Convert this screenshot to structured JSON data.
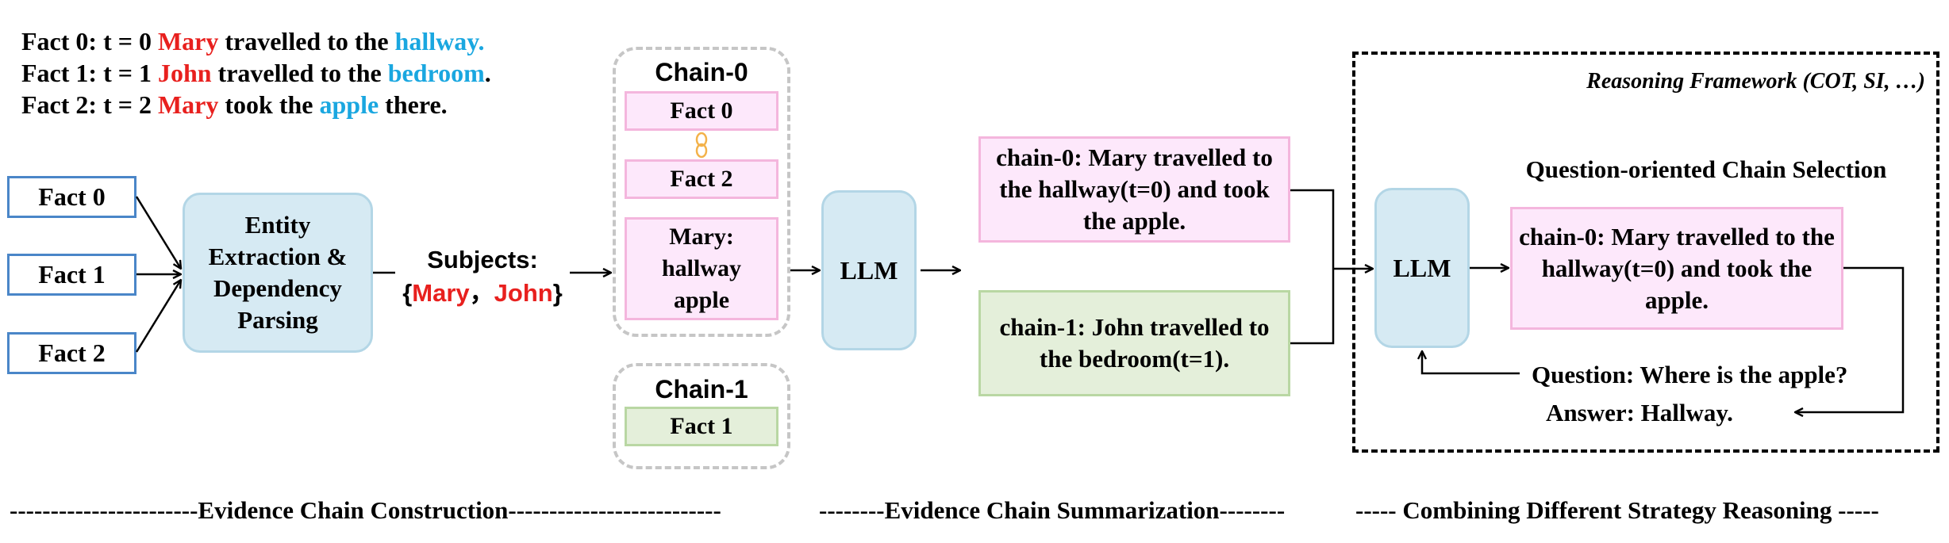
{
  "facts": [
    {
      "label": "Fact 0:",
      "time": "t = 0",
      "subject": "Mary",
      "middle": "travelled to the",
      "object": "hallway",
      "end": "."
    },
    {
      "label": "Fact 1:",
      "time": "t = 1",
      "subject": "John",
      "middle": "travelled to the",
      "object": "bedroom",
      "end": "."
    },
    {
      "label": "Fact 2:",
      "time": "t = 2",
      "subject": "Mary",
      "middle": "took the",
      "object": "apple",
      "end": " there."
    }
  ],
  "input_boxes": [
    "Fact 0",
    "Fact 1",
    "Fact 2"
  ],
  "extraction": {
    "lines": [
      "Entity",
      "Extraction &",
      "Dependency",
      "Parsing"
    ]
  },
  "subjects": {
    "title": "Subjects:",
    "open": "{",
    "mary": "Mary",
    "sep": "，",
    "john": "John",
    "close": "}"
  },
  "chain0": {
    "title": "Chain-0",
    "fact_a": "Fact 0",
    "fact_b": "Fact 2",
    "entity_lines": [
      "Mary:",
      "hallway",
      "apple"
    ]
  },
  "chain1": {
    "title": "Chain-1",
    "fact": "Fact 1"
  },
  "llm_left": "LLM",
  "summaries": {
    "chain0": [
      "chain-0: Mary travelled to",
      "the hallway(t=0) and took",
      "the apple."
    ],
    "chain1": [
      "chain-1: John travelled to",
      "the bedroom(t=1)."
    ]
  },
  "framework": {
    "title": "Reasoning Framework (COT, SI, …)",
    "selection_title": "Question-oriented Chain Selection",
    "llm": "LLM",
    "selected": [
      "chain-0: Mary travelled to the",
      "hallway(t=0) and took the",
      "apple."
    ],
    "question": "Question: Where is the apple?",
    "answer": "Answer: Hallway."
  },
  "footer": {
    "construction": "-----------------------Evidence Chain Construction--------------------------",
    "summarization": "--------Evidence Chain Summarization--------",
    "combining": "----- Combining Different Strategy Reasoning -----"
  },
  "colors": {
    "entity_red": "#e8201e",
    "entity_cyan": "#1aa7e0",
    "fact_border": "#4a86c8",
    "pink_fill": "#fde8fb",
    "green_fill": "#e4efda",
    "llm_fill": "#d6eaf3",
    "link_orange": "#f3b24a"
  }
}
